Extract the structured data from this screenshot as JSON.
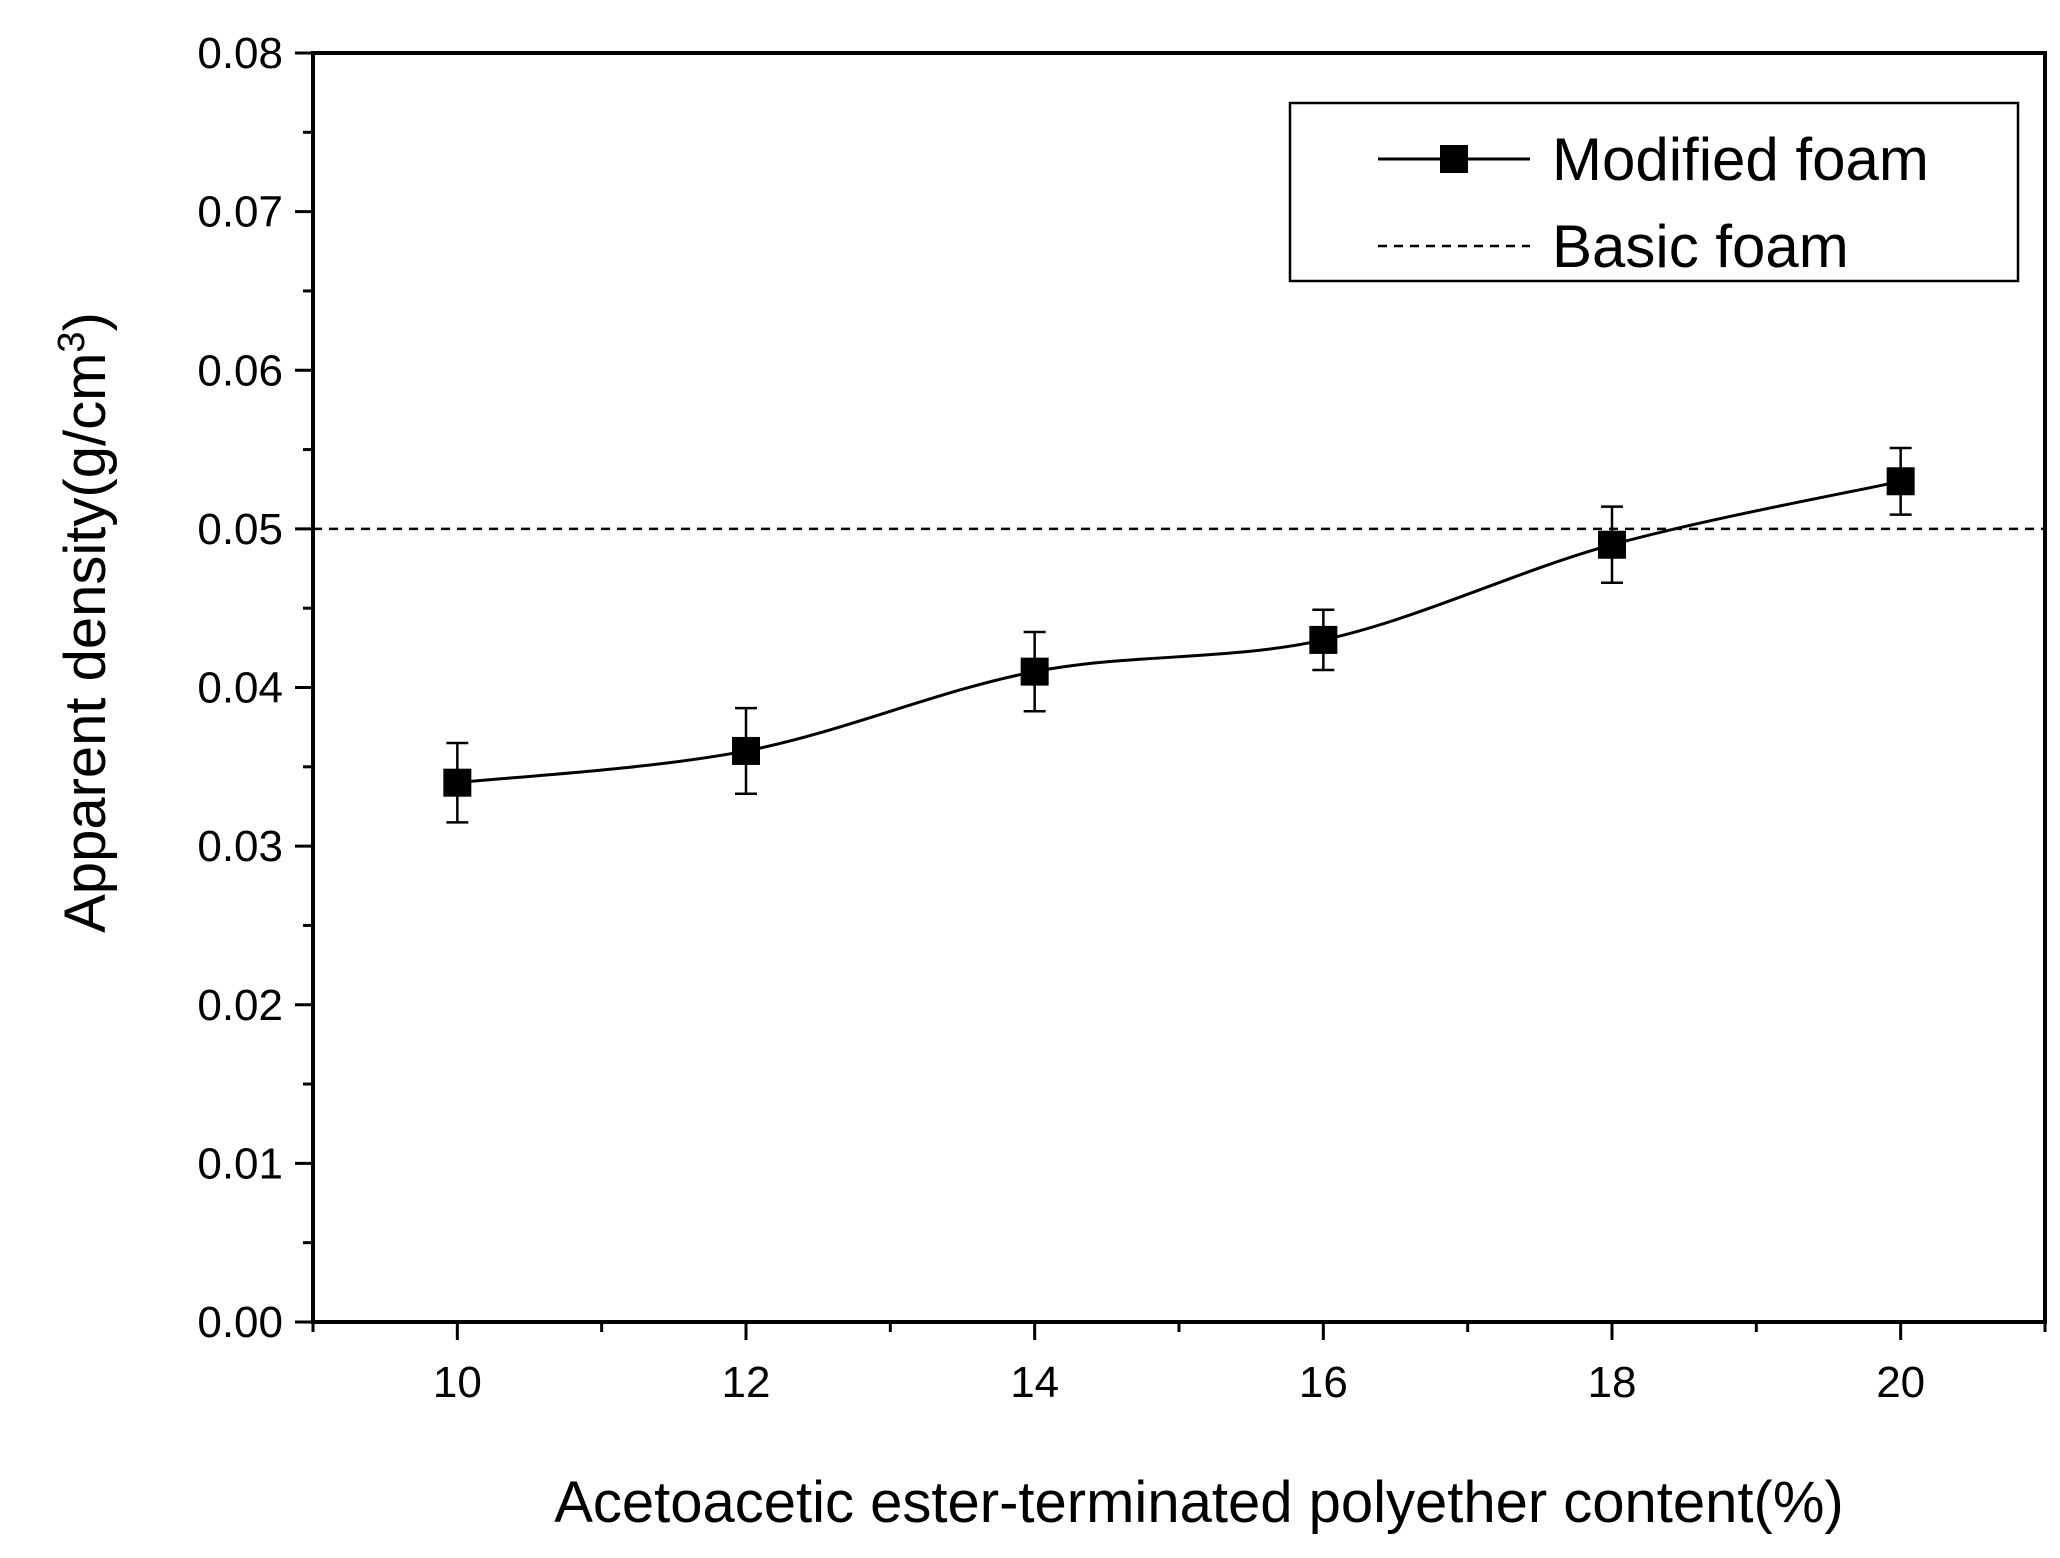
{
  "chart_data": {
    "type": "line",
    "xlabel": "Acetoacetic ester-terminated polyether content(%)",
    "ylabel": {
      "main": "Apparent density(g/cm",
      "superscript": "3",
      "close": ")"
    },
    "xlim": [
      9,
      21
    ],
    "ylim": [
      0,
      0.08
    ],
    "x_ticks": [
      10,
      12,
      14,
      16,
      18,
      20
    ],
    "x_tick_labels": [
      "10",
      "12",
      "14",
      "16",
      "18",
      "20"
    ],
    "y_ticks": [
      0,
      0.01,
      0.02,
      0.03,
      0.04,
      0.05,
      0.06,
      0.07,
      0.08
    ],
    "y_tick_labels": [
      "0.00",
      "0.01",
      "0.02",
      "0.03",
      "0.04",
      "0.05",
      "0.06",
      "0.07",
      "0.08"
    ],
    "grid": false,
    "legend_position": "top-right",
    "series": [
      {
        "name": "Modified foam",
        "style": "solid line with square markers",
        "color": "#000000",
        "x": [
          10,
          12,
          14,
          16,
          18,
          20
        ],
        "y": [
          0.034,
          0.036,
          0.041,
          0.043,
          0.049,
          0.053
        ],
        "error": [
          0.0025,
          0.0027,
          0.0025,
          0.0019,
          0.0024,
          0.0021
        ]
      },
      {
        "name": "Basic foam",
        "style": "dashed horizontal reference line",
        "color": "#000000",
        "y_constant": 0.05
      }
    ]
  }
}
